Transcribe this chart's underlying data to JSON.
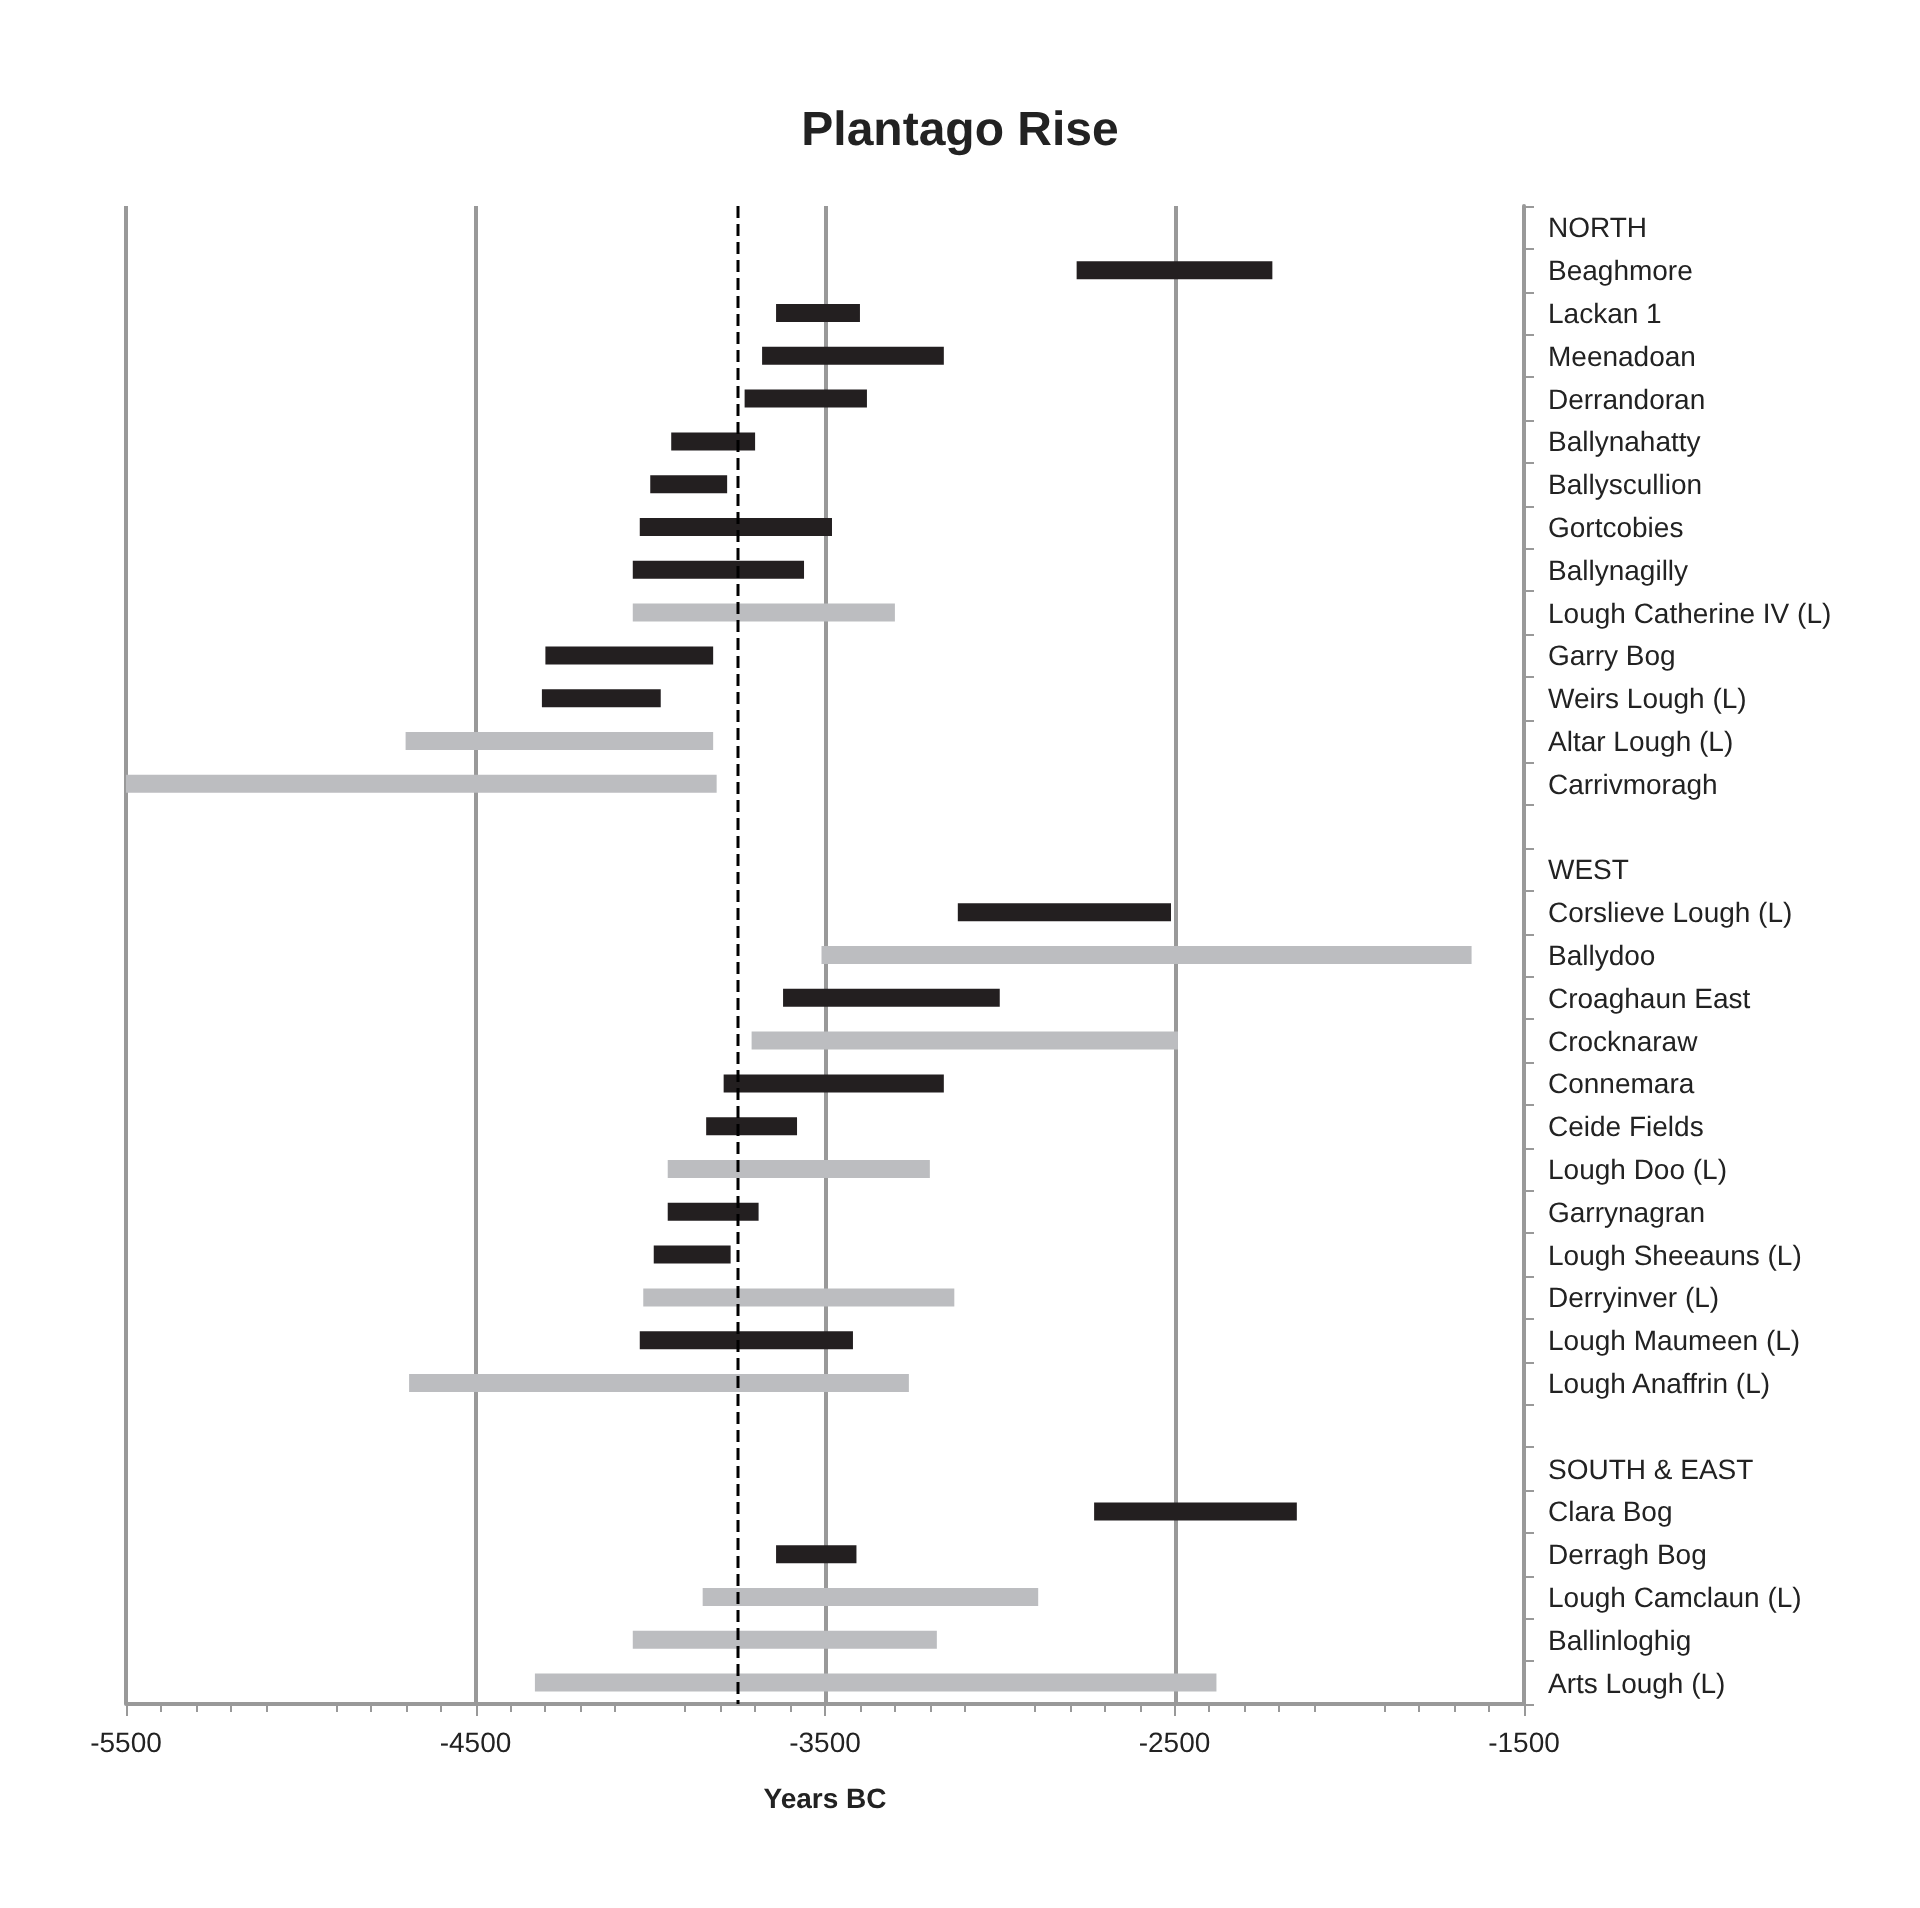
{
  "chart_data": {
    "type": "bar",
    "orientation": "horizontal",
    "title": "Plantago Rise",
    "xlabel": "Years BC",
    "categories": [
      "NORTH",
      "Beaghmore",
      "Lackan 1",
      "Meenadoan",
      "Derrandoran",
      "Ballynahatty",
      "Ballyscullion",
      "Gortcobies",
      "Ballynagilly",
      "Lough Catherine IV (L)",
      "Garry Bog",
      "Weirs Lough (L)",
      "Altar Lough (L)",
      "Carrivmoragh",
      null,
      "WEST",
      "Corslieve Lough (L)",
      "Ballydoo",
      "Croaghaun East",
      "Crocknaraw",
      "Connemara",
      "Ceide Fields",
      "Lough Doo (L)",
      "Garrynagran",
      "Lough Sheeauns (L)",
      "Derryinver (L)",
      "Lough Maumeen (L)",
      "Lough Anaffrin (L)",
      null,
      "SOUTH & EAST",
      "Clara Bog",
      "Derragh Bog",
      "Lough Camclaun (L)",
      "Ballinloghig",
      "Arts Lough (L)"
    ],
    "base": [
      null,
      -2780,
      -3640,
      -3680,
      -3730,
      -3940,
      -4000,
      -4030,
      -4050,
      -4050,
      -4300,
      -4310,
      -4700,
      -5500,
      null,
      null,
      -3120,
      -3510,
      -3620,
      -3710,
      -3790,
      -3840,
      -3950,
      -3950,
      -3990,
      -4020,
      -4030,
      -4690,
      null,
      null,
      -2730,
      -3640,
      -3850,
      -4050,
      -4330
    ],
    "values": [
      null,
      560,
      240,
      520,
      350,
      240,
      220,
      550,
      490,
      750,
      480,
      340,
      880,
      1690,
      null,
      null,
      610,
      1860,
      620,
      1220,
      630,
      260,
      750,
      260,
      220,
      890,
      610,
      1430,
      null,
      null,
      580,
      230,
      960,
      870,
      1950
    ],
    "colors": [
      null,
      "#231f20",
      "#231f20",
      "#231f20",
      "#231f20",
      "#231f20",
      "#231f20",
      "#231f20",
      "#231f20",
      "#bcbdc0",
      "#231f20",
      "#231f20",
      "#bcbdc0",
      "#bcbdc0",
      null,
      null,
      "#231f20",
      "#bcbdc0",
      "#231f20",
      "#bcbdc0",
      "#231f20",
      "#231f20",
      "#bcbdc0",
      "#231f20",
      "#231f20",
      "#bcbdc0",
      "#231f20",
      "#bcbdc0",
      null,
      null,
      "#231f20",
      "#231f20",
      "#bcbdc0",
      "#bcbdc0",
      "#bcbdc0"
    ],
    "xlim": [
      -5500,
      -1500
    ],
    "xticks": [
      -5500,
      -4500,
      -3500,
      -2500,
      -1500
    ],
    "grid": "x",
    "ref_lines": [
      {
        "axis": "x",
        "value": -3750,
        "color": "#000000",
        "line_style": "dashed"
      }
    ]
  }
}
